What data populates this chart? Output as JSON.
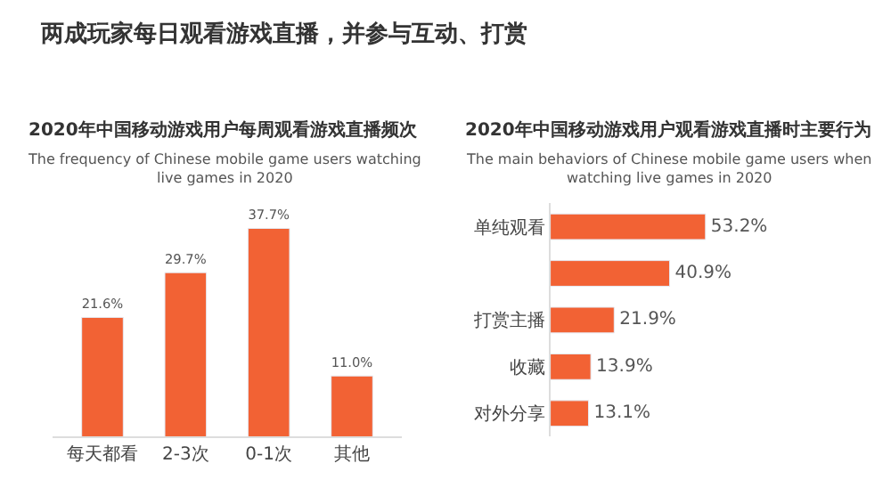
{
  "chart_data": [
    {
      "type": "bar",
      "title": "2020年中国移动游戏用户每周观看游戏直播频次",
      "subtitle": "The frequency of Chinese mobile game users watching live games in 2020",
      "annotations": [
        "两成玩家每日观看游戏直播，并参与互动、打赏"
      ],
      "categories": [
        "每天都看",
        "2-3次",
        "0-1次",
        "其他"
      ],
      "values": [
        21.6,
        29.7,
        37.7,
        11.0
      ],
      "color": "#f26234",
      "value_labels": [
        "21.6%",
        "29.7%",
        "37.7%",
        "11.0%"
      ],
      "tick_labels": "x",
      "legend": false
    },
    {
      "type": "bar",
      "orientation": "horizontal",
      "title": "2020年中国移动游戏用户观看游戏直播时主要行为",
      "subtitle": "The main behaviors of Chinese mobile game users when watching live games in 2020",
      "categories": [
        "单纯观看",
        null,
        "打赏主播",
        "收藏",
        "对外分享"
      ],
      "values": [
        53.2,
        40.9,
        21.9,
        13.9,
        13.1
      ],
      "color": "#f26234",
      "value_labels": [
        "53.2%",
        "40.9%",
        "21.9%",
        "13.9%",
        "13.1%"
      ],
      "tick_labels": "y",
      "legend": false
    }
  ]
}
